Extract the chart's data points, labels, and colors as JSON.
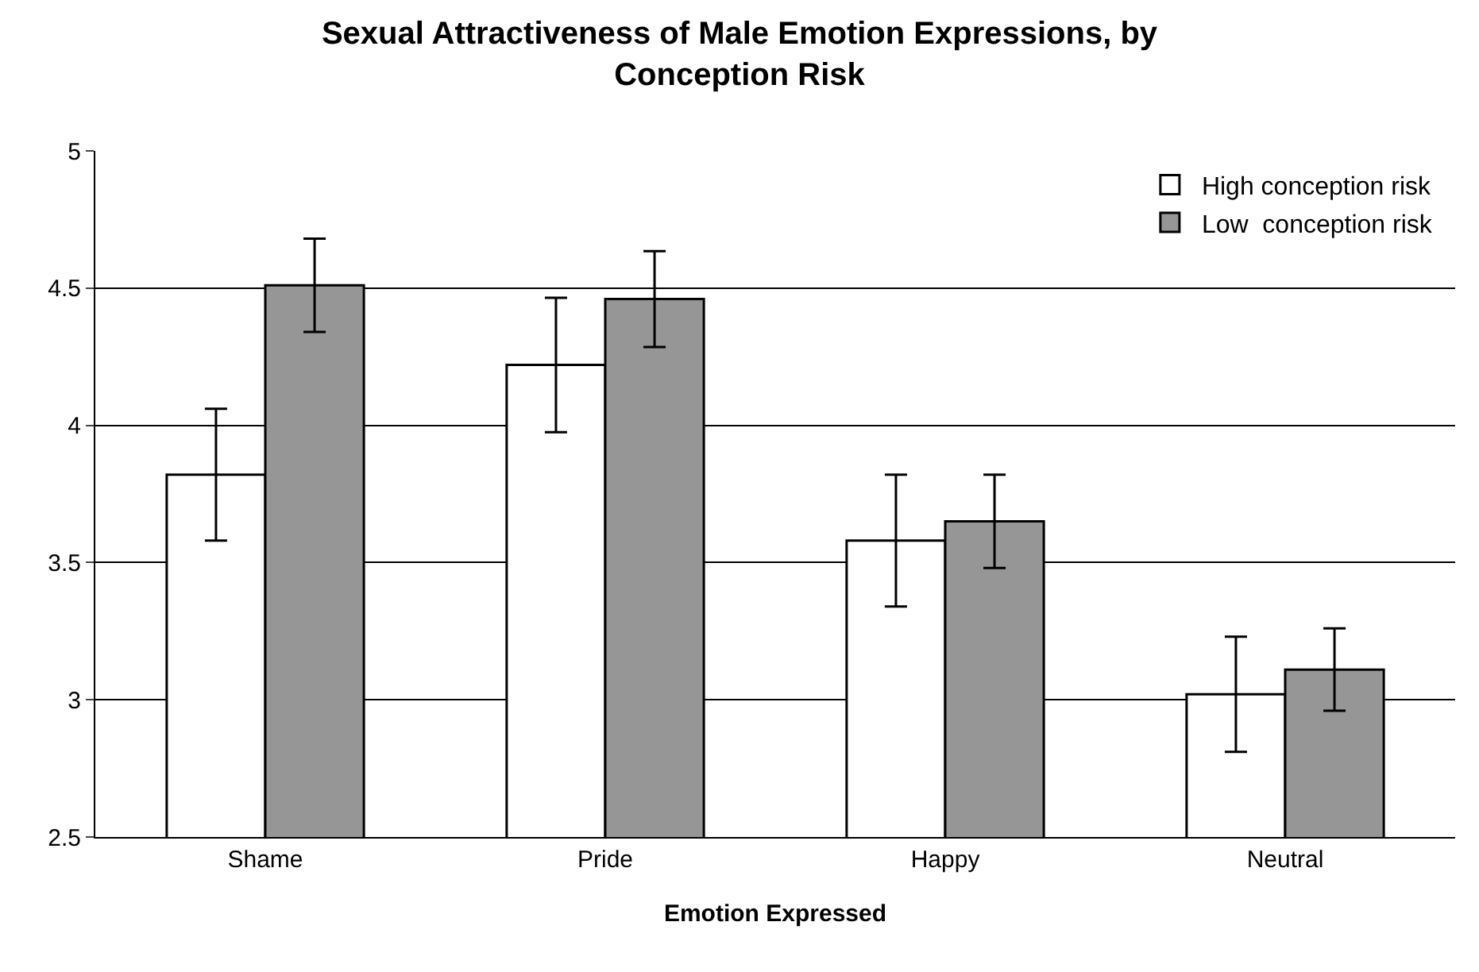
{
  "chart_data": {
    "type": "bar",
    "title": "Sexual Attractiveness of Male Emotion Expressions, by Conception Risk",
    "xlabel": "Emotion Expressed",
    "categories": [
      "Shame",
      "Pride",
      "Happy",
      "Neutral"
    ],
    "series": [
      {
        "name": "High conception risk",
        "color": "#ffffff",
        "values": [
          3.82,
          4.22,
          3.58,
          3.02
        ],
        "errors": [
          0.24,
          0.245,
          0.24,
          0.21
        ]
      },
      {
        "name": "Low  conception risk",
        "color": "#969696",
        "values": [
          4.51,
          4.46,
          3.65,
          3.11
        ],
        "errors": [
          0.17,
          0.175,
          0.17,
          0.15
        ]
      }
    ],
    "ylim": [
      2.5,
      5
    ],
    "yticks": [
      2.5,
      3,
      3.5,
      4,
      4.5,
      5
    ],
    "grid": "y",
    "legend": "top right"
  }
}
